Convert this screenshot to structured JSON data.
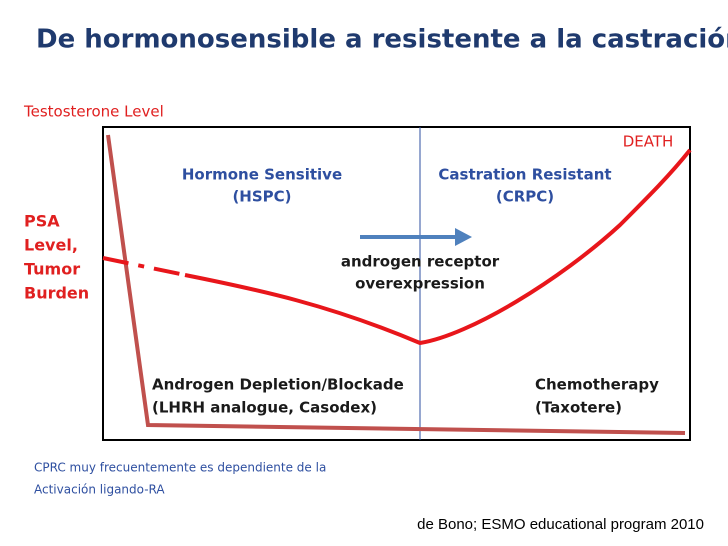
{
  "title": "De hormonosensible a resistente a la castración",
  "diagram": {
    "y_labels": {
      "testosterone": "Testosterone Level",
      "psa": [
        "PSA",
        "Level,",
        "Tumor",
        "Burden"
      ]
    },
    "phases": [
      {
        "name": "Hormone Sensitive",
        "abbr": "(HSPC)"
      },
      {
        "name": "Castration Resistant",
        "abbr": "(CRPC)"
      }
    ],
    "endpoint": "DEATH",
    "mechanism": [
      "androgen receptor",
      "overexpression"
    ],
    "treatments": [
      {
        "name": "Androgen Depletion/Blockade",
        "detail": "(LHRH analogue, Casodex)"
      },
      {
        "name": "Chemotherapy",
        "detail": "(Taxotere)"
      }
    ]
  },
  "note": [
    "CPRC  muy frecuentemente es dependiente de la",
    "Activación ligando-RA"
  ],
  "citation": "de Bono; ESMO educational program 2010"
}
